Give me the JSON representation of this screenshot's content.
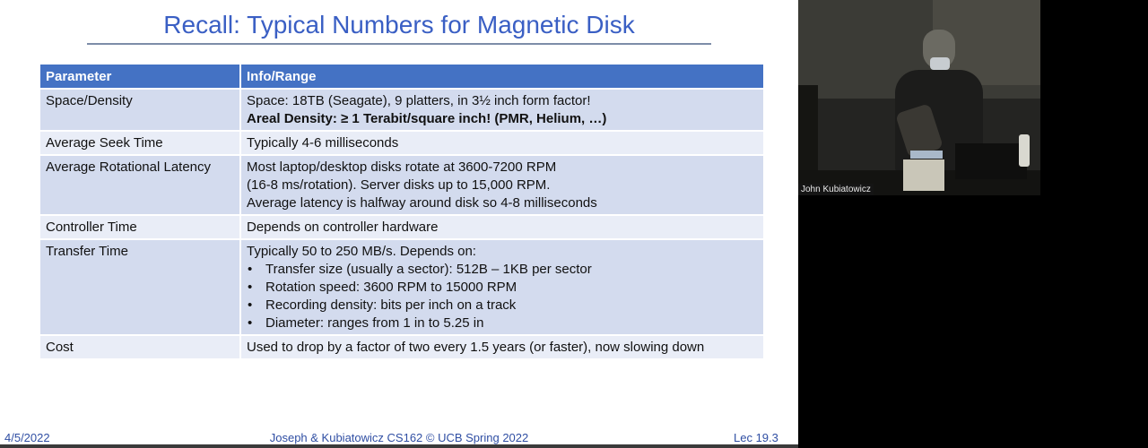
{
  "slide": {
    "title": "Recall: Typical Numbers for Magnetic Disk",
    "table": {
      "headers": [
        "Parameter",
        "Info/Range"
      ],
      "rows": [
        {
          "param": "Space/Density",
          "lines": [
            "Space: 18TB (Seagate), 9 platters, in 3½ inch form factor!"
          ],
          "bold_line": "Areal Density: ≥ 1 Terabit/square inch! (PMR, Helium, …)"
        },
        {
          "param": "Average Seek Time",
          "lines": [
            "Typically 4-6 milliseconds"
          ]
        },
        {
          "param": "Average Rotational Latency",
          "lines": [
            "Most laptop/desktop disks rotate at 3600-7200 RPM",
            "(16-8 ms/rotation). Server disks up to 15,000 RPM.",
            "Average latency is halfway around disk so 4-8 milliseconds"
          ]
        },
        {
          "param": "Controller Time",
          "lines": [
            "Depends on controller hardware"
          ]
        },
        {
          "param": "Transfer Time",
          "lines": [
            "Typically 50 to 250 MB/s. Depends on:"
          ],
          "bullets": [
            "Transfer size (usually a sector): 512B – 1KB per sector",
            "Rotation speed: 3600 RPM to 15000 RPM",
            "Recording density: bits per inch on a track",
            "Diameter: ranges from  1 in to 5.25 in"
          ]
        },
        {
          "param": "Cost",
          "lines": [
            "Used to drop by a factor of two every 1.5 years (or faster), now slowing down"
          ]
        }
      ]
    },
    "footer": {
      "date": "4/5/2022",
      "center": "Joseph & Kubiatowicz CS162 © UCB Spring 2022",
      "lecture": "Lec 19.3"
    }
  },
  "video": {
    "participant_name": "John Kubiatowicz"
  },
  "colors": {
    "title": "#3a5fc4",
    "table_header": "#4472c4",
    "row_odd": "#d3dbee",
    "row_even": "#e9edf7",
    "footer_text": "#2f4ea3"
  }
}
